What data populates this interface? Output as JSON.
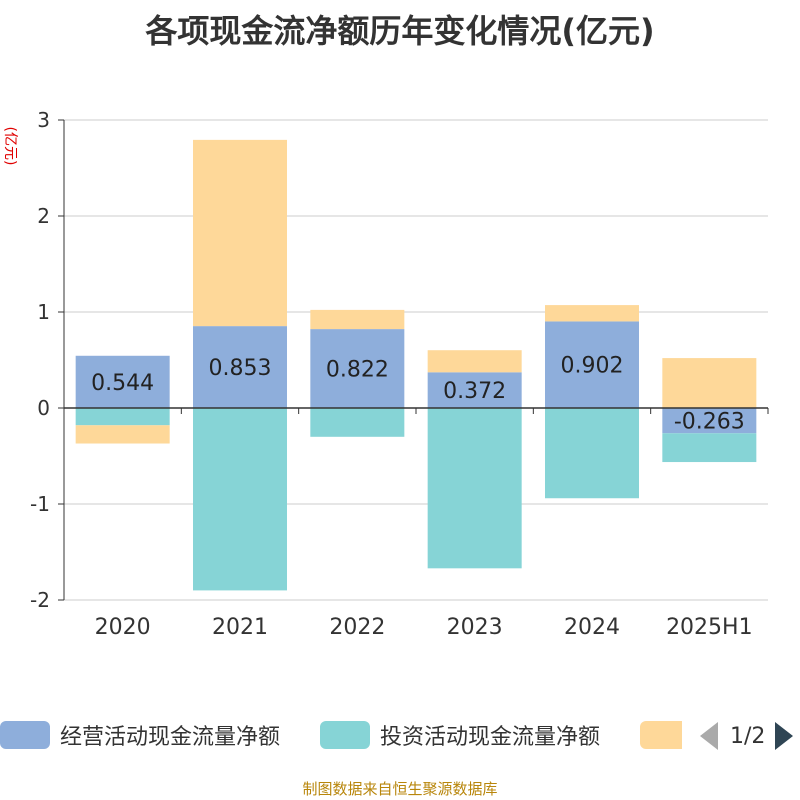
{
  "title": "各项现金流净额历年变化情况(亿元)",
  "source": "制图数据来自恒生聚源数据库",
  "legend": {
    "items": [
      {
        "label": "经营活动现金流量净额",
        "color": "#8eaedb"
      },
      {
        "label": "投资活动现金流量净额",
        "color": "#86d4d6"
      },
      {
        "label": "",
        "color": "#fed899"
      }
    ],
    "page": "1/2"
  },
  "chart_data": {
    "type": "bar",
    "stacked": true,
    "categories": [
      "2020",
      "2021",
      "2022",
      "2023",
      "2024",
      "2025H1"
    ],
    "ylabel": "(亿元)",
    "ylim": [
      -2,
      3
    ],
    "yticks": [
      3,
      2,
      1,
      0,
      -1,
      -2
    ],
    "grid": true,
    "series": [
      {
        "name": "经营活动现金流量净额",
        "color": "#8eaedb",
        "values": [
          0.544,
          0.853,
          0.822,
          0.372,
          0.902,
          -0.263
        ],
        "labels_shown": true
      },
      {
        "name": "投资活动现金流量净额",
        "color": "#86d4d6",
        "values": [
          -0.18,
          -1.9,
          -0.3,
          -1.67,
          -0.94,
          -0.3
        ],
        "labels_shown": false
      },
      {
        "color": "#fed899",
        "values": [
          -0.19,
          1.94,
          0.2,
          0.23,
          0.17,
          0.52
        ],
        "labels_shown": false
      }
    ]
  }
}
